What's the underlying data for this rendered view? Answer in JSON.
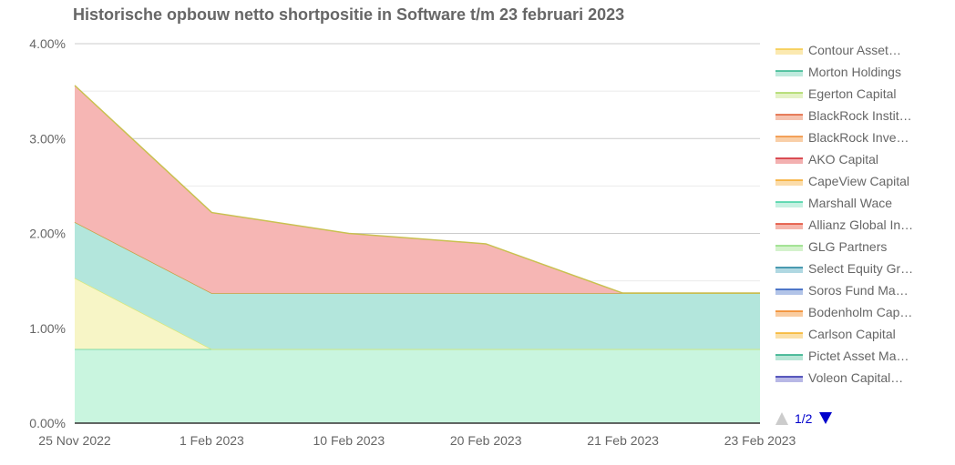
{
  "chart_data": {
    "type": "area",
    "stacked": true,
    "title": "Historische opbouw netto shortpositie in Software t/m 23 februari 2023",
    "categories": [
      "25 Nov 2022",
      "1 Feb 2023",
      "10 Feb 2023",
      "20 Feb 2023",
      "21 Feb 2023",
      "23 Feb 2023"
    ],
    "ylim": [
      0,
      4
    ],
    "yticks": [
      "0.00%",
      "1.00%",
      "2.00%",
      "3.00%",
      "4.00%"
    ],
    "grid": true,
    "legend_position": "right",
    "legend_page": "1/2",
    "series": [
      {
        "name": "Marshall Wace",
        "color": "#c9f5df",
        "line": "#5fd39a",
        "values": [
          0.78,
          0.78,
          0.78,
          0.78,
          0.78,
          0.78
        ]
      },
      {
        "name": "Egerton Capital",
        "color": "#f7f5c6",
        "line": "#d9e87a",
        "values": [
          0.75,
          0,
          0,
          0,
          0,
          0
        ]
      },
      {
        "name": "Morton Holdings",
        "color": "#b3e6dc",
        "line": "#c8a040",
        "values": [
          0.59,
          0.59,
          0.59,
          0.59,
          0.59,
          0.59
        ]
      },
      {
        "name": "AKO Capital",
        "color": "#f6b6b4",
        "line": "#c9c050",
        "values": [
          1.44,
          0.85,
          0.63,
          0.52,
          0,
          0
        ]
      }
    ],
    "legend": [
      {
        "name": "Contour Asset…",
        "color": "#f5c842",
        "fill": "#fbe9b0"
      },
      {
        "name": "Morton Holdings",
        "color": "#2db38a",
        "fill": "#bfeadd"
      },
      {
        "name": "Egerton Capital",
        "color": "#a5d65a",
        "fill": "#e4f2c6"
      },
      {
        "name": "BlackRock Instit…",
        "color": "#e05a30",
        "fill": "#f5c3b0"
      },
      {
        "name": "BlackRock Inve…",
        "color": "#f08a30",
        "fill": "#f9cfa8"
      },
      {
        "name": "AKO Capital",
        "color": "#d0202a",
        "fill": "#f3b0b0"
      },
      {
        "name": "CapeView Capital",
        "color": "#f5a623",
        "fill": "#fbdcaa"
      },
      {
        "name": "Marshall Wace",
        "color": "#3ccfa0",
        "fill": "#c6f1e2"
      },
      {
        "name": "Allianz Global In…",
        "color": "#e0402a",
        "fill": "#f5b6ac"
      },
      {
        "name": "GLG Partners",
        "color": "#8cdc7a",
        "fill": "#d4f2cc"
      },
      {
        "name": "Select Equity Gr…",
        "color": "#1a7f9a",
        "fill": "#b0d8e2"
      },
      {
        "name": "Soros Fund Ma…",
        "color": "#2255bb",
        "fill": "#b2c4e8"
      },
      {
        "name": "Bodenholm Cap…",
        "color": "#f08018",
        "fill": "#f9cca0"
      },
      {
        "name": "Carlson Capital",
        "color": "#f5b020",
        "fill": "#fbe0a8"
      },
      {
        "name": "Pictet Asset Ma…",
        "color": "#20a880",
        "fill": "#b8e6d6"
      },
      {
        "name": "Voleon Capital…",
        "color": "#2828aa",
        "fill": "#b8b8e6"
      }
    ]
  }
}
